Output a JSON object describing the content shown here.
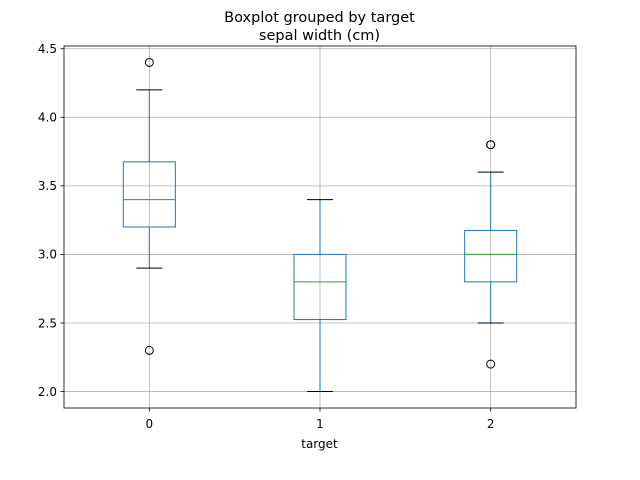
{
  "chart_data": {
    "type": "boxplot",
    "title": "Boxplot grouped by target",
    "subtitle": "sepal width (cm)",
    "xlabel": "target",
    "ylabel": "",
    "categories": [
      "0",
      "1",
      "2"
    ],
    "ylim": [
      1.88,
      4.52
    ],
    "yticks": [
      2.0,
      2.5,
      3.0,
      3.5,
      4.0,
      4.5
    ],
    "ytick_labels": [
      "2.0",
      "2.5",
      "3.0",
      "3.5",
      "4.0",
      "4.5"
    ],
    "grid": true,
    "boxes": [
      {
        "category": "0",
        "whisker_low": 2.9,
        "q1": 3.2,
        "median": 3.4,
        "q3": 3.675,
        "whisker_high": 4.2,
        "outliers": [
          4.4,
          2.3
        ]
      },
      {
        "category": "1",
        "whisker_low": 2.0,
        "q1": 2.525,
        "median": 2.8,
        "q3": 3.0,
        "whisker_high": 3.4,
        "outliers": []
      },
      {
        "category": "2",
        "whisker_low": 2.5,
        "q1": 2.8,
        "median": 3.0,
        "q3": 3.175,
        "whisker_high": 3.6,
        "outliers": [
          3.8,
          3.8,
          2.2
        ]
      }
    ],
    "colors": {
      "box": "#1f77b4",
      "median": "#2ca02c",
      "whisker": "#1f77b4",
      "cap": "#000000",
      "outlier": "#000000",
      "grid": "#b0b0b0"
    }
  }
}
